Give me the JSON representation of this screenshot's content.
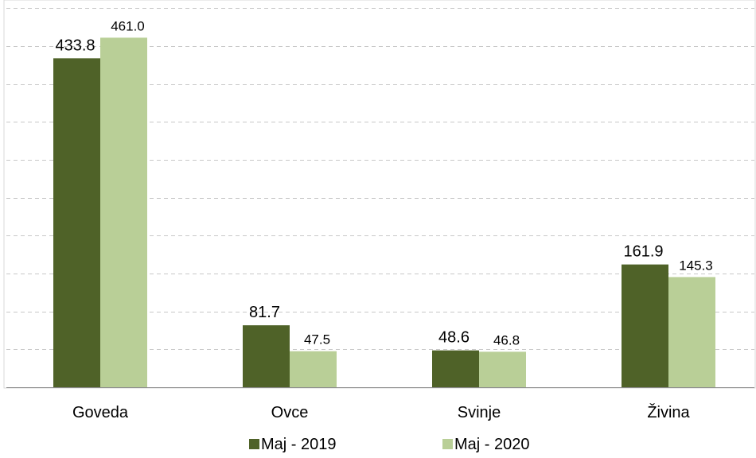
{
  "chart_data": {
    "type": "bar",
    "categories": [
      "Goveda",
      "Ovce",
      "Svinje",
      "Živina"
    ],
    "series": [
      {
        "name": "Maj - 2019",
        "values": [
          433.8,
          81.7,
          48.6,
          161.9
        ],
        "color": "#4f6228"
      },
      {
        "name": "Maj - 2020",
        "values": [
          461.0,
          47.5,
          46.8,
          145.3
        ],
        "color": "#b9cf97"
      }
    ],
    "data_labels": [
      [
        "433.8",
        "81.7",
        "48.6",
        "161.9"
      ],
      [
        "461.0",
        "47.5",
        "46.8",
        "145.3"
      ]
    ],
    "ylim": [
      0,
      500
    ],
    "grid": true,
    "y_axis_labels_shown": false,
    "legend_position": "bottom",
    "colors": {
      "gridline": "#c8c8c8",
      "axis": "#8c8c8c",
      "border": "#d9d9d9"
    }
  }
}
